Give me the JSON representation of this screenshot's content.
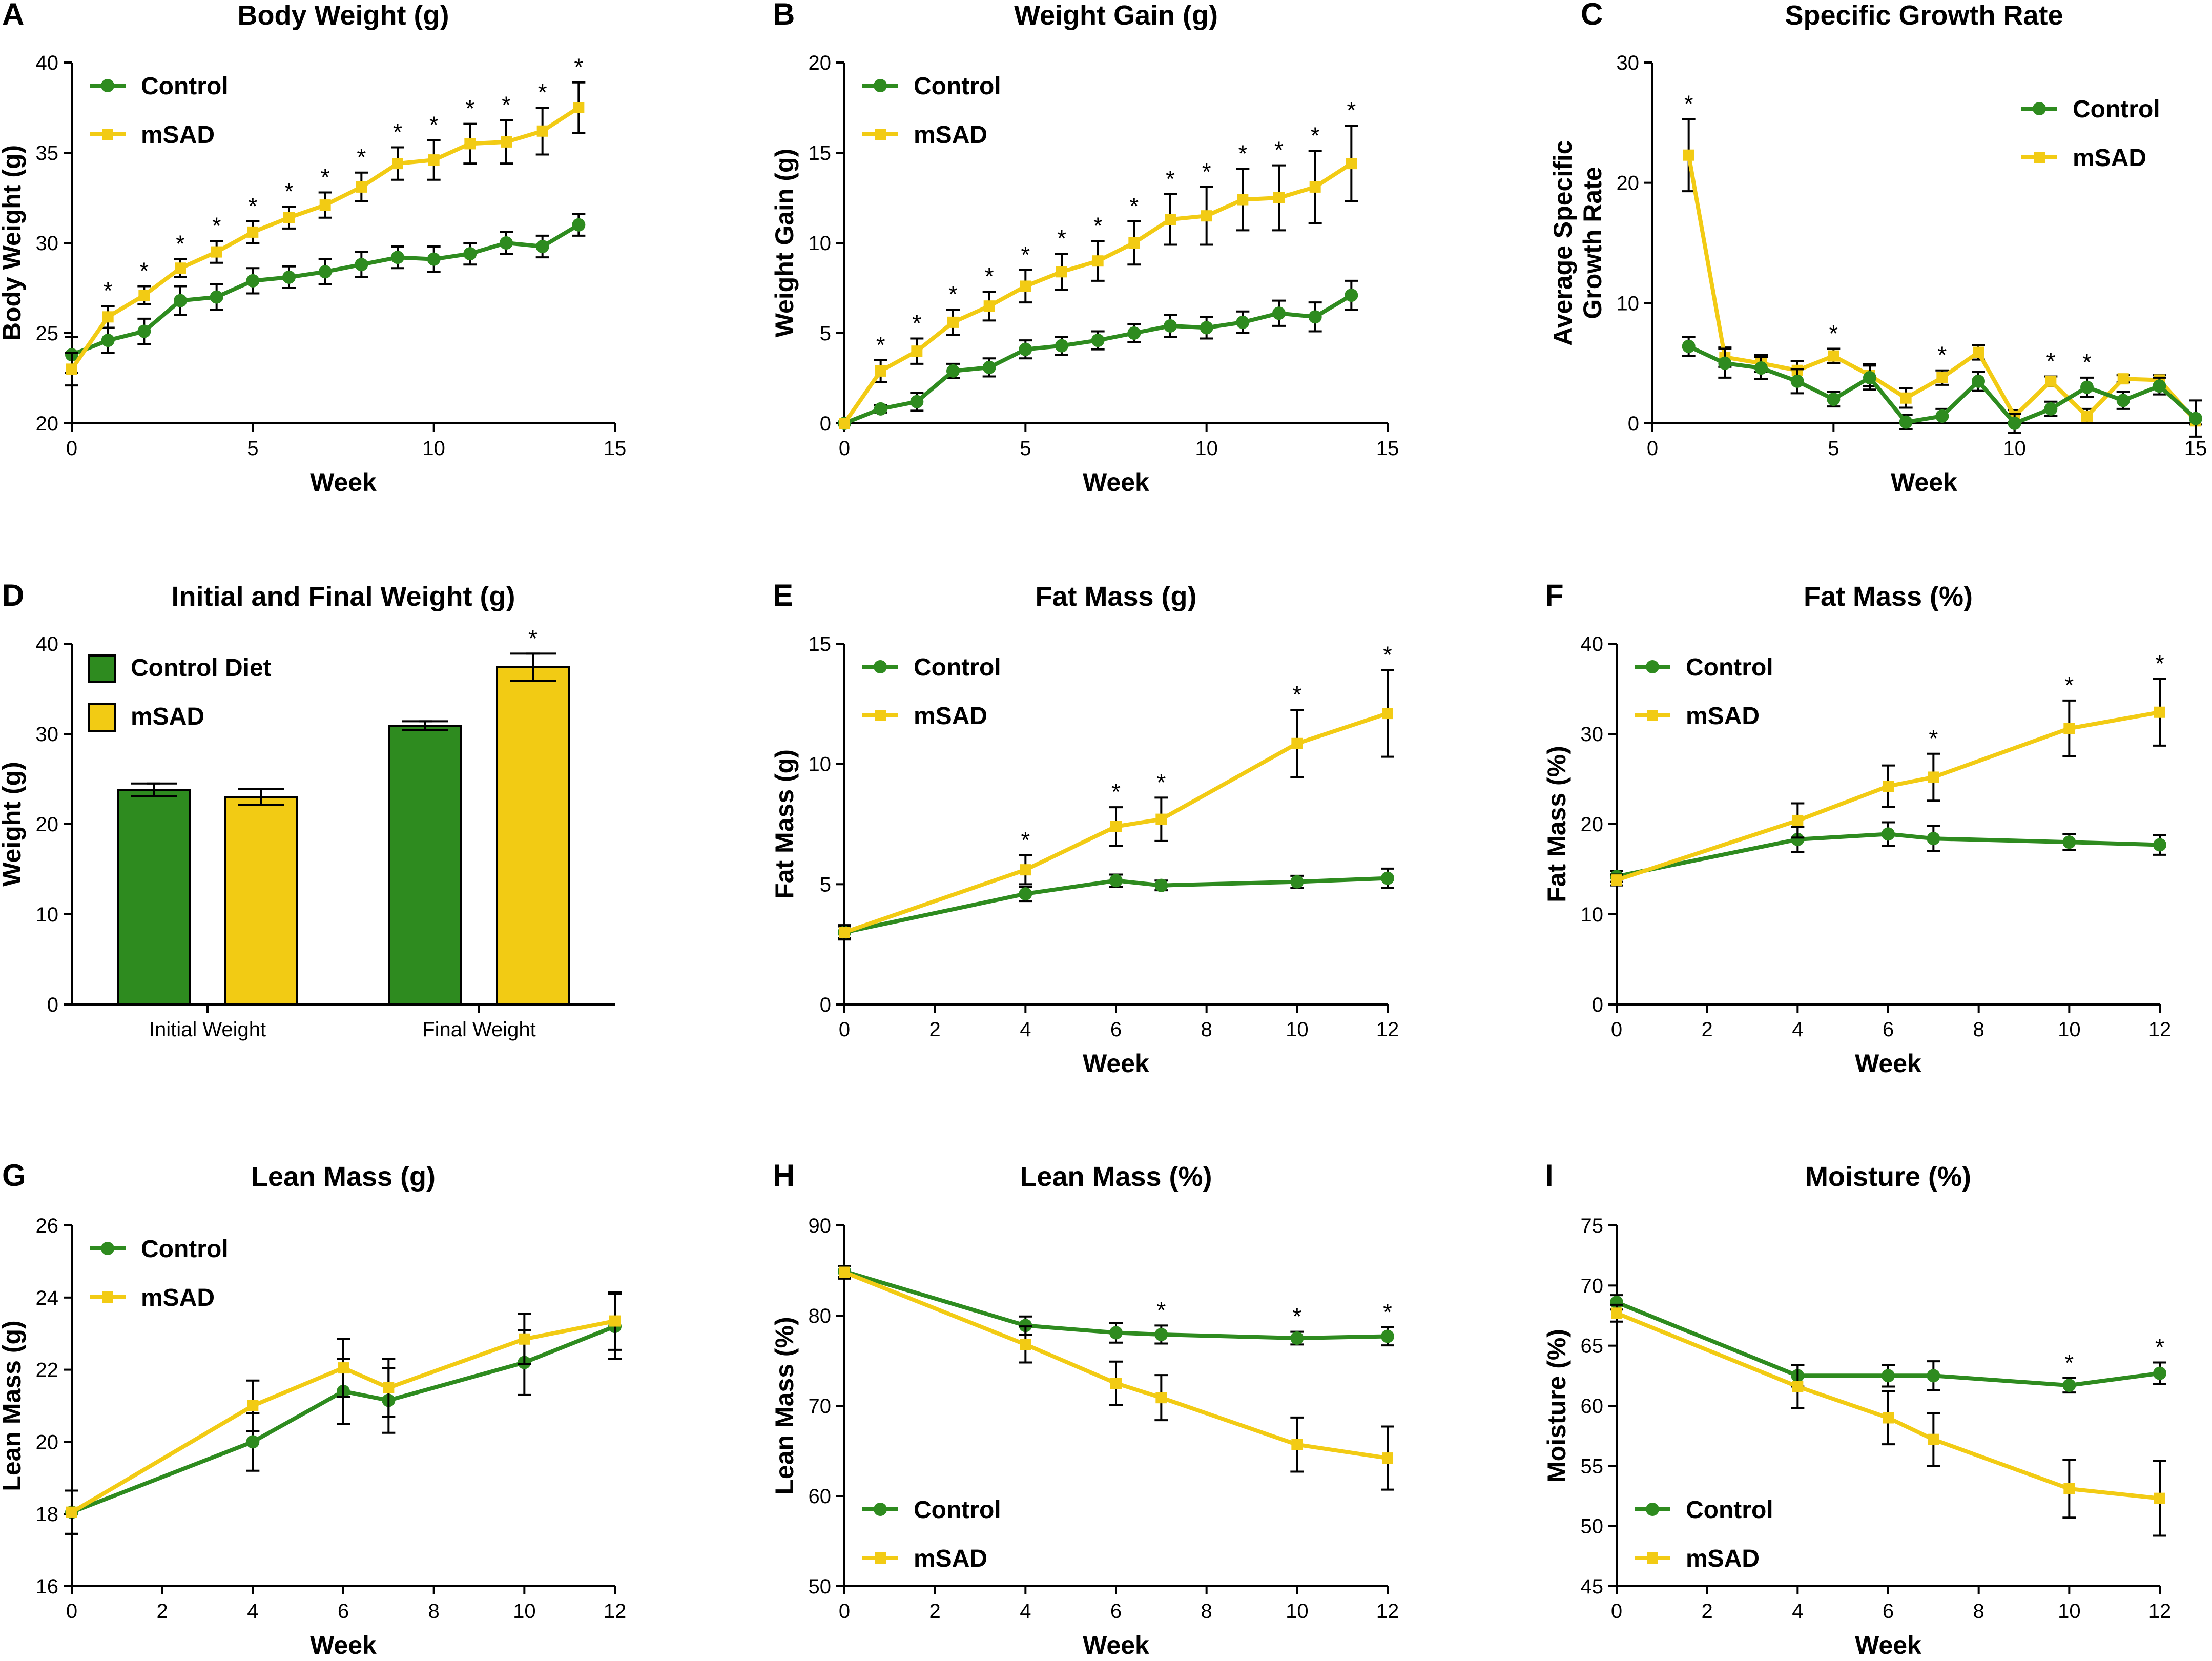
{
  "colors": {
    "control": "#2e8b1f",
    "msad": "#f2cb14",
    "axis": "#000000"
  },
  "chart_data": [
    {
      "id": "A",
      "type": "line",
      "letter": "A",
      "title": "Body Weight (g)",
      "xlabel": "Week",
      "ylabel": "Body Weight (g)",
      "xlim": [
        0,
        15
      ],
      "ylim": [
        20,
        40
      ],
      "xticks": [
        0,
        5,
        10,
        15
      ],
      "yticks": [
        20,
        25,
        30,
        35,
        40
      ],
      "legend": {
        "position": "top-left"
      },
      "series": [
        {
          "name": "Control",
          "key": "control",
          "x": [
            0,
            1,
            2,
            3,
            4,
            5,
            6,
            7,
            8,
            9,
            10,
            11,
            12,
            13,
            14
          ],
          "y": [
            23.8,
            24.6,
            25.1,
            26.8,
            27.0,
            27.9,
            28.1,
            28.4,
            28.8,
            29.2,
            29.1,
            29.4,
            30.0,
            29.8,
            31.0
          ],
          "err": [
            1.0,
            0.7,
            0.7,
            0.8,
            0.7,
            0.7,
            0.6,
            0.7,
            0.7,
            0.6,
            0.7,
            0.6,
            0.6,
            0.6,
            0.6
          ]
        },
        {
          "name": "mSAD",
          "key": "msad",
          "x": [
            0,
            1,
            2,
            3,
            4,
            5,
            6,
            7,
            8,
            9,
            10,
            11,
            12,
            13,
            14
          ],
          "y": [
            23.0,
            25.9,
            27.1,
            28.6,
            29.5,
            30.6,
            31.4,
            32.1,
            33.1,
            34.4,
            34.6,
            35.5,
            35.6,
            36.2,
            37.5
          ],
          "err": [
            0.9,
            0.6,
            0.5,
            0.5,
            0.6,
            0.6,
            0.6,
            0.7,
            0.8,
            0.9,
            1.1,
            1.1,
            1.2,
            1.3,
            1.4
          ]
        }
      ],
      "stars": [
        1,
        2,
        3,
        4,
        5,
        6,
        7,
        8,
        9,
        10,
        11,
        12,
        13,
        14
      ]
    },
    {
      "id": "B",
      "type": "line",
      "letter": "B",
      "title": "Weight Gain (g)",
      "xlabel": "Week",
      "ylabel": "Weight Gain (g)",
      "xlim": [
        0,
        15
      ],
      "ylim": [
        0,
        20
      ],
      "xticks": [
        0,
        5,
        10,
        15
      ],
      "yticks": [
        0,
        5,
        10,
        15,
        20
      ],
      "legend": {
        "position": "top-left"
      },
      "series": [
        {
          "name": "Control",
          "key": "control",
          "x": [
            0,
            1,
            2,
            3,
            4,
            5,
            6,
            7,
            8,
            9,
            10,
            11,
            12,
            13,
            14
          ],
          "y": [
            0,
            0.8,
            1.2,
            2.9,
            3.1,
            4.1,
            4.3,
            4.6,
            5.0,
            5.4,
            5.3,
            5.6,
            6.1,
            5.9,
            7.1
          ],
          "err": [
            0,
            0.2,
            0.5,
            0.4,
            0.5,
            0.5,
            0.5,
            0.5,
            0.5,
            0.6,
            0.6,
            0.6,
            0.7,
            0.8,
            0.8
          ]
        },
        {
          "name": "mSAD",
          "key": "msad",
          "x": [
            0,
            1,
            2,
            3,
            4,
            5,
            6,
            7,
            8,
            9,
            10,
            11,
            12,
            13,
            14
          ],
          "y": [
            0,
            2.9,
            4.0,
            5.6,
            6.5,
            7.6,
            8.4,
            9.0,
            10.0,
            11.3,
            11.5,
            12.4,
            12.5,
            13.1,
            14.4
          ],
          "err": [
            0,
            0.6,
            0.7,
            0.7,
            0.8,
            0.9,
            1.0,
            1.1,
            1.2,
            1.4,
            1.6,
            1.7,
            1.8,
            2.0,
            2.1
          ]
        }
      ],
      "stars": [
        1,
        2,
        3,
        4,
        5,
        6,
        7,
        8,
        9,
        10,
        11,
        12,
        13,
        14
      ]
    },
    {
      "id": "C",
      "type": "line",
      "letter": "C",
      "title": "Specific Growth Rate",
      "xlabel": "Week",
      "ylabel": "Average Specific Growth Rate",
      "ylabel_lines": [
        "Average Specific",
        "Growth Rate"
      ],
      "xlim": [
        0,
        15
      ],
      "ylim": [
        0,
        30
      ],
      "xticks": [
        0,
        5,
        10,
        15
      ],
      "yticks": [
        0,
        10,
        20,
        30
      ],
      "legend": {
        "position": "top-right"
      },
      "series": [
        {
          "name": "Control",
          "key": "control",
          "x": [
            1,
            2,
            3,
            4,
            5,
            6,
            7,
            8,
            9,
            10,
            11,
            12,
            13,
            14,
            15
          ],
          "y": [
            6.4,
            5.0,
            4.6,
            3.5,
            2.0,
            3.8,
            0.1,
            0.6,
            3.5,
            0.0,
            1.2,
            3.0,
            1.9,
            3.1,
            0.4
          ],
          "err": [
            0.8,
            1.2,
            0.9,
            1.0,
            0.6,
            1.0,
            0.6,
            0.6,
            0.8,
            0.8,
            0.6,
            0.8,
            0.7,
            0.7,
            1.5
          ]
        },
        {
          "name": "mSAD",
          "key": "msad",
          "x": [
            1,
            2,
            3,
            4,
            5,
            6,
            7,
            8,
            9,
            10,
            11,
            12,
            13,
            14,
            15
          ],
          "y": [
            22.3,
            5.5,
            5.0,
            4.4,
            5.6,
            4.0,
            2.1,
            3.8,
            5.9,
            0.6,
            3.5,
            0.6,
            3.7,
            3.6,
            0.2
          ],
          "err": [
            3.0,
            0.8,
            0.7,
            0.8,
            0.6,
            0.9,
            0.8,
            0.6,
            0.6,
            0.5,
            0.4,
            0.6,
            0.3,
            0.4,
            0.3
          ]
        }
      ],
      "stars": [
        1,
        5,
        8,
        11,
        12
      ]
    },
    {
      "id": "D",
      "type": "bar",
      "letter": "D",
      "title": "Initial and Final Weight (g)",
      "xlabel": "",
      "ylabel": "Weight (g)",
      "ylim": [
        0,
        40
      ],
      "yticks": [
        0,
        10,
        20,
        30,
        40
      ],
      "categories": [
        "Initial Weight",
        "Final Weight"
      ],
      "legend": {
        "position": "top-left"
      },
      "series": [
        {
          "name": "Control Diet",
          "key": "control",
          "values": [
            23.8,
            30.9
          ],
          "err": [
            0.7,
            0.5
          ]
        },
        {
          "name": "mSAD",
          "key": "msad",
          "values": [
            23.0,
            37.4
          ],
          "err": [
            0.9,
            1.5
          ]
        }
      ],
      "stars": [
        {
          "category": 1,
          "series": 1
        }
      ]
    },
    {
      "id": "E",
      "type": "line",
      "letter": "E",
      "title": "Fat Mass (g)",
      "xlabel": "Week",
      "ylabel": "Fat Mass (g)",
      "xlim": [
        0,
        12
      ],
      "ylim": [
        0,
        15
      ],
      "xticks": [
        0,
        2,
        4,
        6,
        8,
        10,
        12
      ],
      "yticks": [
        0,
        5,
        10,
        15
      ],
      "legend": {
        "position": "top-left"
      },
      "series": [
        {
          "name": "Control",
          "key": "control",
          "x": [
            0,
            4,
            6,
            7,
            10,
            12
          ],
          "y": [
            3.0,
            4.6,
            5.15,
            4.95,
            5.1,
            5.25
          ],
          "err": [
            0.25,
            0.3,
            0.25,
            0.2,
            0.25,
            0.4
          ]
        },
        {
          "name": "mSAD",
          "key": "msad",
          "x": [
            0,
            4,
            6,
            7,
            10,
            12
          ],
          "y": [
            3.0,
            5.6,
            7.4,
            7.7,
            10.85,
            12.1
          ],
          "err": [
            0.3,
            0.6,
            0.8,
            0.9,
            1.4,
            1.8
          ]
        }
      ],
      "stars": [
        4,
        6,
        7,
        10,
        12
      ]
    },
    {
      "id": "F",
      "type": "line",
      "letter": "F",
      "title": "Fat Mass (%)",
      "xlabel": "Week",
      "ylabel": "Fat Mass (%)",
      "xlim": [
        0,
        12
      ],
      "ylim": [
        0,
        40
      ],
      "xticks": [
        0,
        2,
        4,
        6,
        8,
        10,
        12
      ],
      "yticks": [
        0,
        10,
        20,
        30,
        40
      ],
      "legend": {
        "position": "top-left"
      },
      "series": [
        {
          "name": "Control",
          "key": "control",
          "x": [
            0,
            4,
            6,
            7,
            10,
            12
          ],
          "y": [
            14.2,
            18.3,
            18.9,
            18.4,
            18.0,
            17.7
          ],
          "err": [
            0.6,
            1.4,
            1.3,
            1.4,
            0.9,
            1.1
          ]
        },
        {
          "name": "mSAD",
          "key": "msad",
          "x": [
            0,
            4,
            6,
            7,
            10,
            12
          ],
          "y": [
            13.8,
            20.4,
            24.2,
            25.2,
            30.6,
            32.4
          ],
          "err": [
            0.6,
            1.9,
            2.3,
            2.6,
            3.1,
            3.7
          ]
        }
      ],
      "stars": [
        7,
        10,
        12
      ]
    },
    {
      "id": "G",
      "type": "line",
      "letter": "G",
      "title": "Lean Mass (g)",
      "xlabel": "Week",
      "ylabel": "Lean Mass (g)",
      "xlim": [
        0,
        12
      ],
      "ylim": [
        16,
        26
      ],
      "xticks": [
        0,
        2,
        4,
        6,
        8,
        10,
        12
      ],
      "yticks": [
        16,
        18,
        20,
        22,
        24,
        26
      ],
      "legend": {
        "position": "top-left"
      },
      "series": [
        {
          "name": "Control",
          "key": "control",
          "x": [
            0,
            4,
            6,
            7,
            10,
            12
          ],
          "y": [
            18.05,
            20.0,
            21.4,
            21.15,
            22.2,
            23.2
          ],
          "err": [
            0.6,
            0.8,
            0.9,
            0.9,
            0.9,
            0.9
          ]
        },
        {
          "name": "mSAD",
          "key": "msad",
          "x": [
            0,
            4,
            6,
            7,
            10,
            12
          ],
          "y": [
            18.05,
            21.0,
            22.05,
            21.5,
            22.85,
            23.35
          ],
          "err": [
            0.6,
            0.7,
            0.8,
            0.8,
            0.7,
            0.8
          ]
        }
      ],
      "stars": []
    },
    {
      "id": "H",
      "type": "line",
      "letter": "H",
      "title": "Lean Mass (%)",
      "xlabel": "Week",
      "ylabel": "Lean Mass (%)",
      "xlim": [
        0,
        12
      ],
      "ylim": [
        50,
        90
      ],
      "xticks": [
        0,
        2,
        4,
        6,
        8,
        10,
        12
      ],
      "yticks": [
        50,
        60,
        70,
        80,
        90
      ],
      "legend": {
        "position": "bottom-left"
      },
      "series": [
        {
          "name": "Control",
          "key": "control",
          "x": [
            0,
            4,
            6,
            7,
            10,
            12
          ],
          "y": [
            84.9,
            78.9,
            78.1,
            77.9,
            77.5,
            77.7
          ],
          "err": [
            0.6,
            1.0,
            1.1,
            1.0,
            0.7,
            1.0
          ]
        },
        {
          "name": "mSAD",
          "key": "msad",
          "x": [
            0,
            4,
            6,
            7,
            10,
            12
          ],
          "y": [
            84.8,
            76.8,
            72.5,
            70.9,
            65.7,
            64.2
          ],
          "err": [
            0.7,
            2.0,
            2.4,
            2.5,
            3.0,
            3.5
          ]
        }
      ],
      "stars": [
        7,
        10,
        12
      ]
    },
    {
      "id": "I",
      "type": "line",
      "letter": "I",
      "title": "Moisture (%)",
      "xlabel": "Week",
      "ylabel": "Moisture (%)",
      "xlim": [
        0,
        12
      ],
      "ylim": [
        45,
        75
      ],
      "xticks": [
        0,
        2,
        4,
        6,
        8,
        10,
        12
      ],
      "yticks": [
        45,
        50,
        55,
        60,
        65,
        70,
        75
      ],
      "legend": {
        "position": "bottom-left"
      },
      "series": [
        {
          "name": "Control",
          "key": "control",
          "x": [
            0,
            4,
            6,
            7,
            10,
            12
          ],
          "y": [
            68.6,
            62.5,
            62.5,
            62.5,
            61.7,
            62.7
          ],
          "err": [
            0.6,
            0.9,
            0.9,
            1.2,
            0.6,
            0.9
          ]
        },
        {
          "name": "mSAD",
          "key": "msad",
          "x": [
            0,
            4,
            6,
            7,
            10,
            12
          ],
          "y": [
            67.7,
            61.6,
            59.0,
            57.2,
            53.1,
            52.3
          ],
          "err": [
            0.7,
            1.8,
            2.2,
            2.2,
            2.4,
            3.1
          ]
        }
      ],
      "stars": [
        10,
        12
      ]
    }
  ]
}
